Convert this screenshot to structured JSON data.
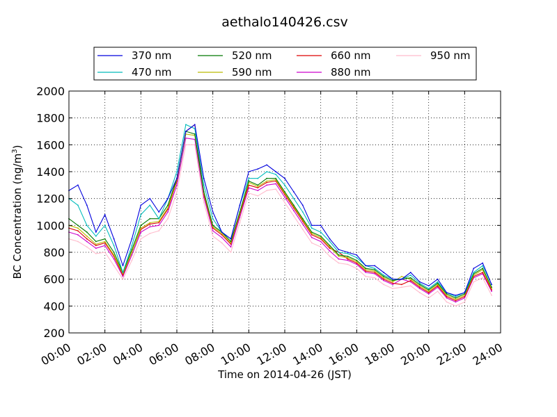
{
  "chart_data": {
    "type": "line",
    "title": "aethalo140426.csv",
    "xlabel": "Time on 2014-04-26 (JST)",
    "ylabel": "BC Concentration (ng/m",
    "ylabel_superscript": "3",
    "ylabel_suffix": ")",
    "xlim": [
      0,
      24
    ],
    "ylim": [
      200,
      2000
    ],
    "grid": true,
    "legend_position": "top",
    "x_ticks": [
      "00:00",
      "02:00",
      "04:00",
      "06:00",
      "08:00",
      "10:00",
      "12:00",
      "14:00",
      "16:00",
      "18:00",
      "20:00",
      "22:00",
      "24:00"
    ],
    "y_ticks": [
      "200",
      "400",
      "600",
      "800",
      "1000",
      "1200",
      "1400",
      "1600",
      "1800",
      "2000"
    ],
    "x": [
      0,
      0.5,
      1,
      1.5,
      2,
      2.5,
      3,
      3.5,
      4,
      4.5,
      5,
      5.5,
      6,
      6.5,
      7,
      7.5,
      8,
      8.5,
      9,
      9.5,
      10,
      10.5,
      11,
      11.5,
      12,
      12.5,
      13,
      13.5,
      14,
      14.5,
      15,
      15.5,
      16,
      16.5,
      17,
      17.5,
      18,
      18.5,
      19,
      19.5,
      20,
      20.5,
      21,
      21.5,
      22,
      22.5,
      23,
      23.5
    ],
    "series": [
      {
        "name": "370 nm",
        "color": "#0000dd",
        "values": [
          1260,
          1300,
          1150,
          950,
          1080,
          900,
          700,
          900,
          1150,
          1200,
          1100,
          1200,
          1350,
          1700,
          1750,
          1350,
          1100,
          950,
          900,
          1150,
          1400,
          1420,
          1450,
          1400,
          1350,
          1250,
          1150,
          1000,
          1000,
          900,
          820,
          800,
          780,
          700,
          700,
          650,
          600,
          600,
          650,
          580,
          550,
          600,
          500,
          480,
          500,
          680,
          720,
          560
        ]
      },
      {
        "name": "470 nm",
        "color": "#00bbbb",
        "values": [
          1200,
          1150,
          1000,
          920,
          1000,
          850,
          650,
          850,
          1080,
          1150,
          1050,
          1200,
          1400,
          1750,
          1720,
          1300,
          1050,
          950,
          900,
          1150,
          1350,
          1350,
          1400,
          1380,
          1300,
          1200,
          1100,
          980,
          950,
          880,
          800,
          790,
          760,
          700,
          680,
          630,
          600,
          600,
          630,
          570,
          530,
          580,
          500,
          470,
          500,
          650,
          700,
          560
        ]
      },
      {
        "name": "520 nm",
        "color": "#007700",
        "values": [
          1050,
          1000,
          950,
          880,
          900,
          800,
          650,
          820,
          1000,
          1050,
          1050,
          1150,
          1350,
          1700,
          1680,
          1250,
          1000,
          950,
          880,
          1100,
          1330,
          1300,
          1350,
          1350,
          1250,
          1150,
          1050,
          950,
          920,
          850,
          780,
          770,
          740,
          680,
          670,
          620,
          590,
          600,
          610,
          560,
          520,
          570,
          490,
          460,
          490,
          640,
          680,
          540
        ]
      },
      {
        "name": "590 nm",
        "color": "#bbbb00",
        "values": [
          1000,
          980,
          920,
          860,
          880,
          780,
          640,
          800,
          980,
          1020,
          1030,
          1130,
          1340,
          1680,
          1670,
          1240,
          990,
          940,
          870,
          1090,
          1320,
          1290,
          1330,
          1340,
          1240,
          1140,
          1040,
          940,
          910,
          840,
          770,
          760,
          730,
          670,
          660,
          610,
          580,
          620,
          600,
          550,
          510,
          560,
          480,
          450,
          480,
          630,
          670,
          530
        ]
      },
      {
        "name": "660 nm",
        "color": "#dd0000",
        "values": [
          980,
          960,
          900,
          850,
          870,
          770,
          630,
          800,
          970,
          1010,
          1020,
          1120,
          1330,
          1700,
          1750,
          1230,
          980,
          930,
          860,
          1080,
          1300,
          1280,
          1320,
          1330,
          1230,
          1130,
          1030,
          930,
          900,
          830,
          800,
          750,
          720,
          660,
          650,
          600,
          570,
          560,
          590,
          540,
          500,
          550,
          470,
          440,
          470,
          620,
          650,
          520
        ]
      },
      {
        "name": "880 nm",
        "color": "#cc00cc",
        "values": [
          950,
          930,
          880,
          830,
          850,
          750,
          620,
          780,
          950,
          990,
          1000,
          1100,
          1300,
          1650,
          1640,
          1210,
          960,
          910,
          840,
          1060,
          1280,
          1260,
          1300,
          1310,
          1210,
          1110,
          1010,
          910,
          880,
          810,
          750,
          740,
          710,
          650,
          640,
          590,
          560,
          600,
          580,
          530,
          490,
          540,
          460,
          430,
          460,
          610,
          640,
          510
        ]
      },
      {
        "name": "950 nm",
        "color": "#ffbbcc",
        "values": [
          900,
          880,
          840,
          790,
          800,
          700,
          600,
          740,
          900,
          940,
          960,
          1050,
          1250,
          1600,
          1600,
          1170,
          920,
          870,
          800,
          1020,
          1240,
          1220,
          1260,
          1270,
          1170,
          1070,
          970,
          870,
          840,
          770,
          720,
          710,
          680,
          620,
          610,
          560,
          530,
          540,
          550,
          500,
          460,
          510,
          430,
          400,
          430,
          580,
          610,
          480
        ]
      }
    ]
  }
}
